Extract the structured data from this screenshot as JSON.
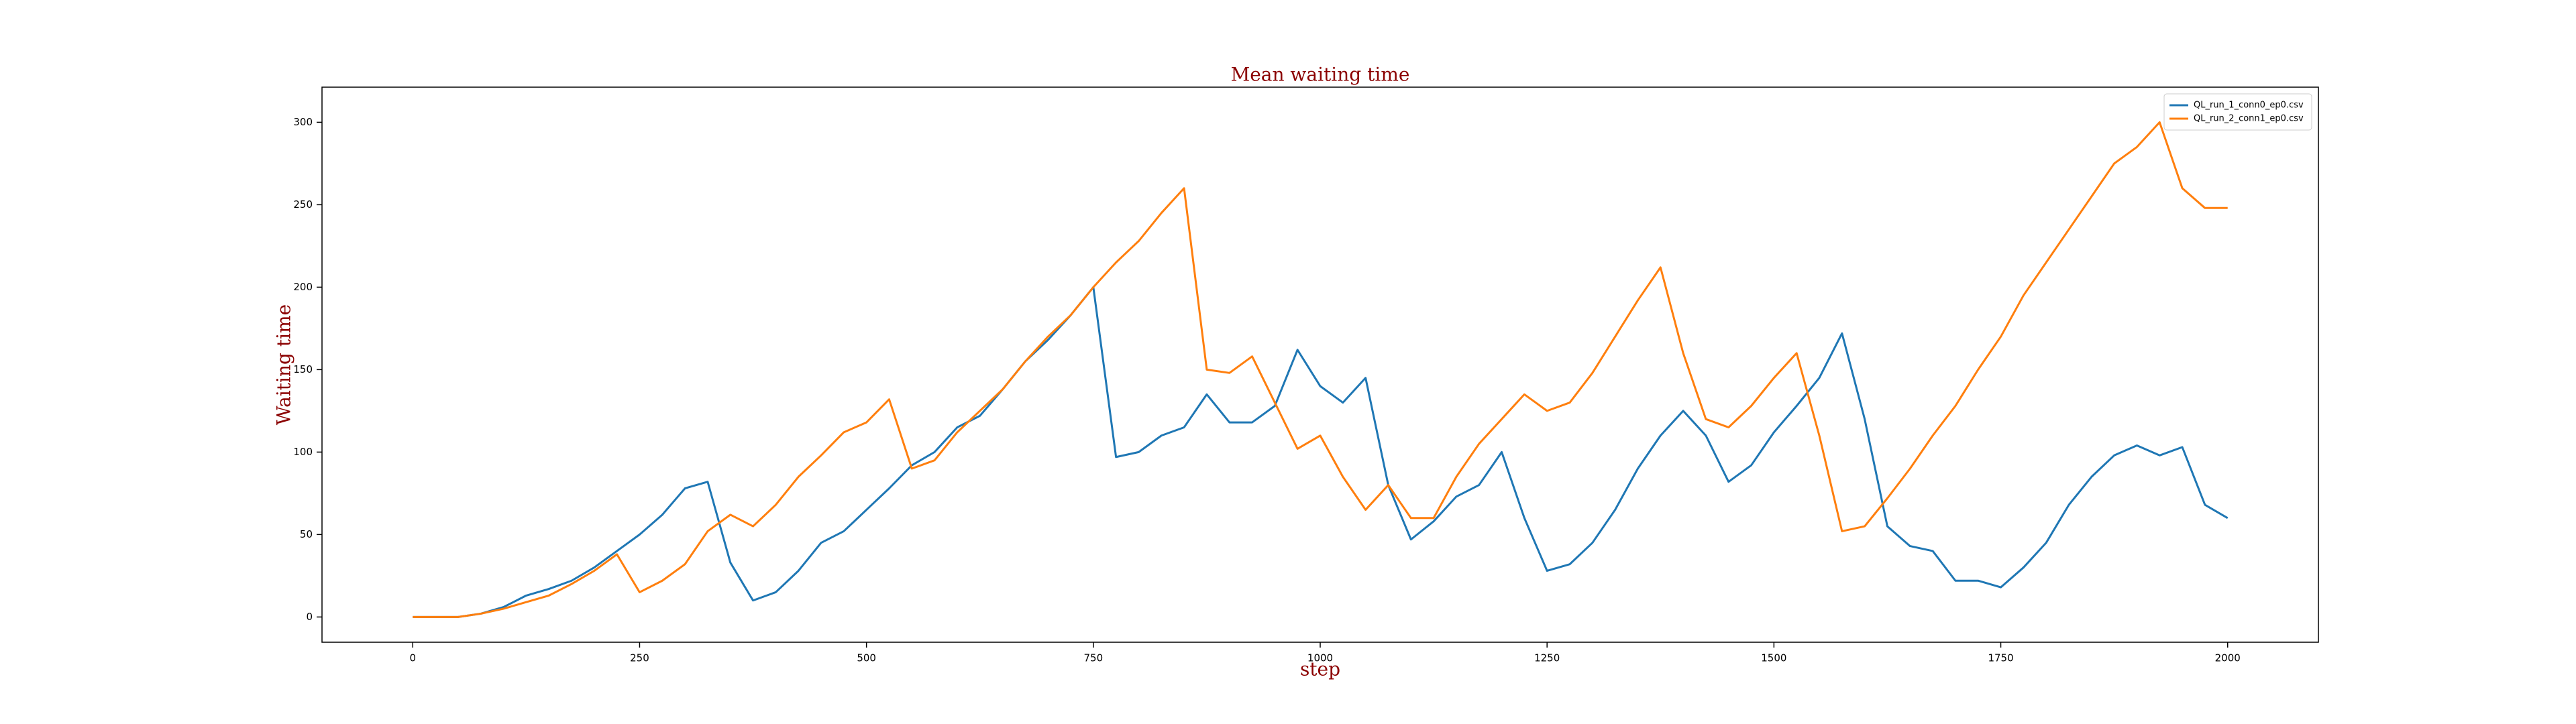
{
  "chart_data": {
    "type": "line",
    "title": "Mean waiting time",
    "x_label": "step",
    "y_label": "Waiting time",
    "x": [
      0,
      25,
      50,
      75,
      100,
      125,
      150,
      175,
      200,
      225,
      250,
      275,
      300,
      325,
      350,
      375,
      400,
      425,
      450,
      475,
      500,
      525,
      550,
      575,
      600,
      625,
      650,
      675,
      700,
      725,
      750,
      775,
      800,
      825,
      850,
      875,
      900,
      925,
      950,
      975,
      1000,
      1025,
      1050,
      1075,
      1100,
      1125,
      1150,
      1175,
      1200,
      1225,
      1250,
      1275,
      1300,
      1325,
      1350,
      1375,
      1400,
      1425,
      1450,
      1475,
      1500,
      1525,
      1550,
      1575,
      1600,
      1625,
      1650,
      1675,
      1700,
      1725,
      1750,
      1775,
      1800,
      1825,
      1850,
      1875,
      1900,
      1925,
      1950,
      1975,
      2000
    ],
    "series": [
      {
        "name": "QL_run_1_conn0_ep0.csv",
        "color": "#1f77b4",
        "values": [
          0,
          0,
          0,
          2,
          6,
          13,
          17,
          22,
          30,
          40,
          50,
          62,
          78,
          82,
          33,
          10,
          15,
          28,
          45,
          52,
          65,
          78,
          92,
          100,
          115,
          122,
          138,
          155,
          168,
          183,
          200,
          97,
          100,
          110,
          115,
          135,
          118,
          118,
          128,
          162,
          140,
          130,
          145,
          80,
          47,
          58,
          73,
          80,
          100,
          60,
          28,
          32,
          45,
          65,
          90,
          110,
          125,
          110,
          82,
          92,
          112,
          128,
          145,
          172,
          120,
          55,
          43,
          40,
          22,
          22,
          18,
          30,
          45,
          68,
          85,
          98,
          104,
          98,
          103,
          68,
          60
        ]
      },
      {
        "name": "QL_run_2_conn1_ep0.csv",
        "color": "#ff7f0e",
        "values": [
          0,
          0,
          0,
          2,
          5,
          9,
          13,
          20,
          28,
          38,
          15,
          22,
          32,
          52,
          62,
          55,
          68,
          85,
          98,
          112,
          118,
          132,
          90,
          95,
          112,
          125,
          138,
          155,
          170,
          183,
          200,
          215,
          228,
          245,
          260,
          150,
          148,
          158,
          130,
          102,
          110,
          85,
          65,
          80,
          60,
          60,
          85,
          105,
          120,
          135,
          125,
          130,
          148,
          170,
          192,
          212,
          160,
          120,
          115,
          128,
          145,
          160,
          110,
          52,
          55,
          72,
          90,
          110,
          128,
          150,
          170,
          195,
          215,
          235,
          255,
          275,
          285,
          300,
          260,
          248,
          248
        ]
      }
    ],
    "xlim": [
      -100,
      2100
    ],
    "ylim": [
      -15.3,
      321.3
    ],
    "xticks": [
      0,
      250,
      500,
      750,
      1000,
      1250,
      1500,
      1750,
      2000
    ],
    "yticks": [
      0,
      50,
      100,
      150,
      200,
      250,
      300
    ],
    "grid": false,
    "legend": "upper right"
  }
}
